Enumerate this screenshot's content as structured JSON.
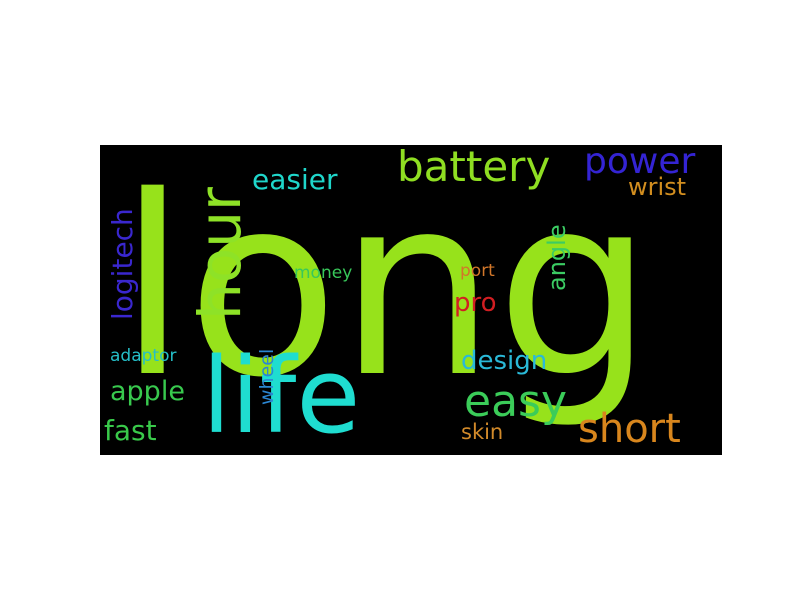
{
  "wordcloud": {
    "background": "#000000",
    "words": [
      {
        "key": "long",
        "text": "long",
        "color": "#97e21b"
      },
      {
        "key": "life",
        "text": "life",
        "color": "#1fddd0"
      },
      {
        "key": "hour",
        "text": "hour",
        "color": "#8ee227"
      },
      {
        "key": "battery",
        "text": "battery",
        "color": "#8fde22"
      },
      {
        "key": "power",
        "text": "power",
        "color": "#3424d4"
      },
      {
        "key": "easier",
        "text": "easier",
        "color": "#1fd6ca"
      },
      {
        "key": "wrist",
        "text": "wrist",
        "color": "#d28e1f"
      },
      {
        "key": "logitech",
        "text": "logitech",
        "color": "#3a27cf"
      },
      {
        "key": "angle",
        "text": "angle",
        "color": "#3bcc63"
      },
      {
        "key": "money",
        "text": "money",
        "color": "#38c85a"
      },
      {
        "key": "port",
        "text": "port",
        "color": "#d2772a"
      },
      {
        "key": "pro",
        "text": "pro",
        "color": "#d21e22"
      },
      {
        "key": "design",
        "text": "design",
        "color": "#2ab9d8"
      },
      {
        "key": "adaptor",
        "text": "adaptor",
        "color": "#25bfc8"
      },
      {
        "key": "wheel",
        "text": "wheel",
        "color": "#2b86d2"
      },
      {
        "key": "apple",
        "text": "apple",
        "color": "#38c94e"
      },
      {
        "key": "easy",
        "text": "easy",
        "color": "#3bcc59"
      },
      {
        "key": "fast",
        "text": "fast",
        "color": "#39c94a"
      },
      {
        "key": "skin",
        "text": "skin",
        "color": "#d28a2a"
      },
      {
        "key": "short",
        "text": "short",
        "color": "#d8861d"
      }
    ]
  }
}
